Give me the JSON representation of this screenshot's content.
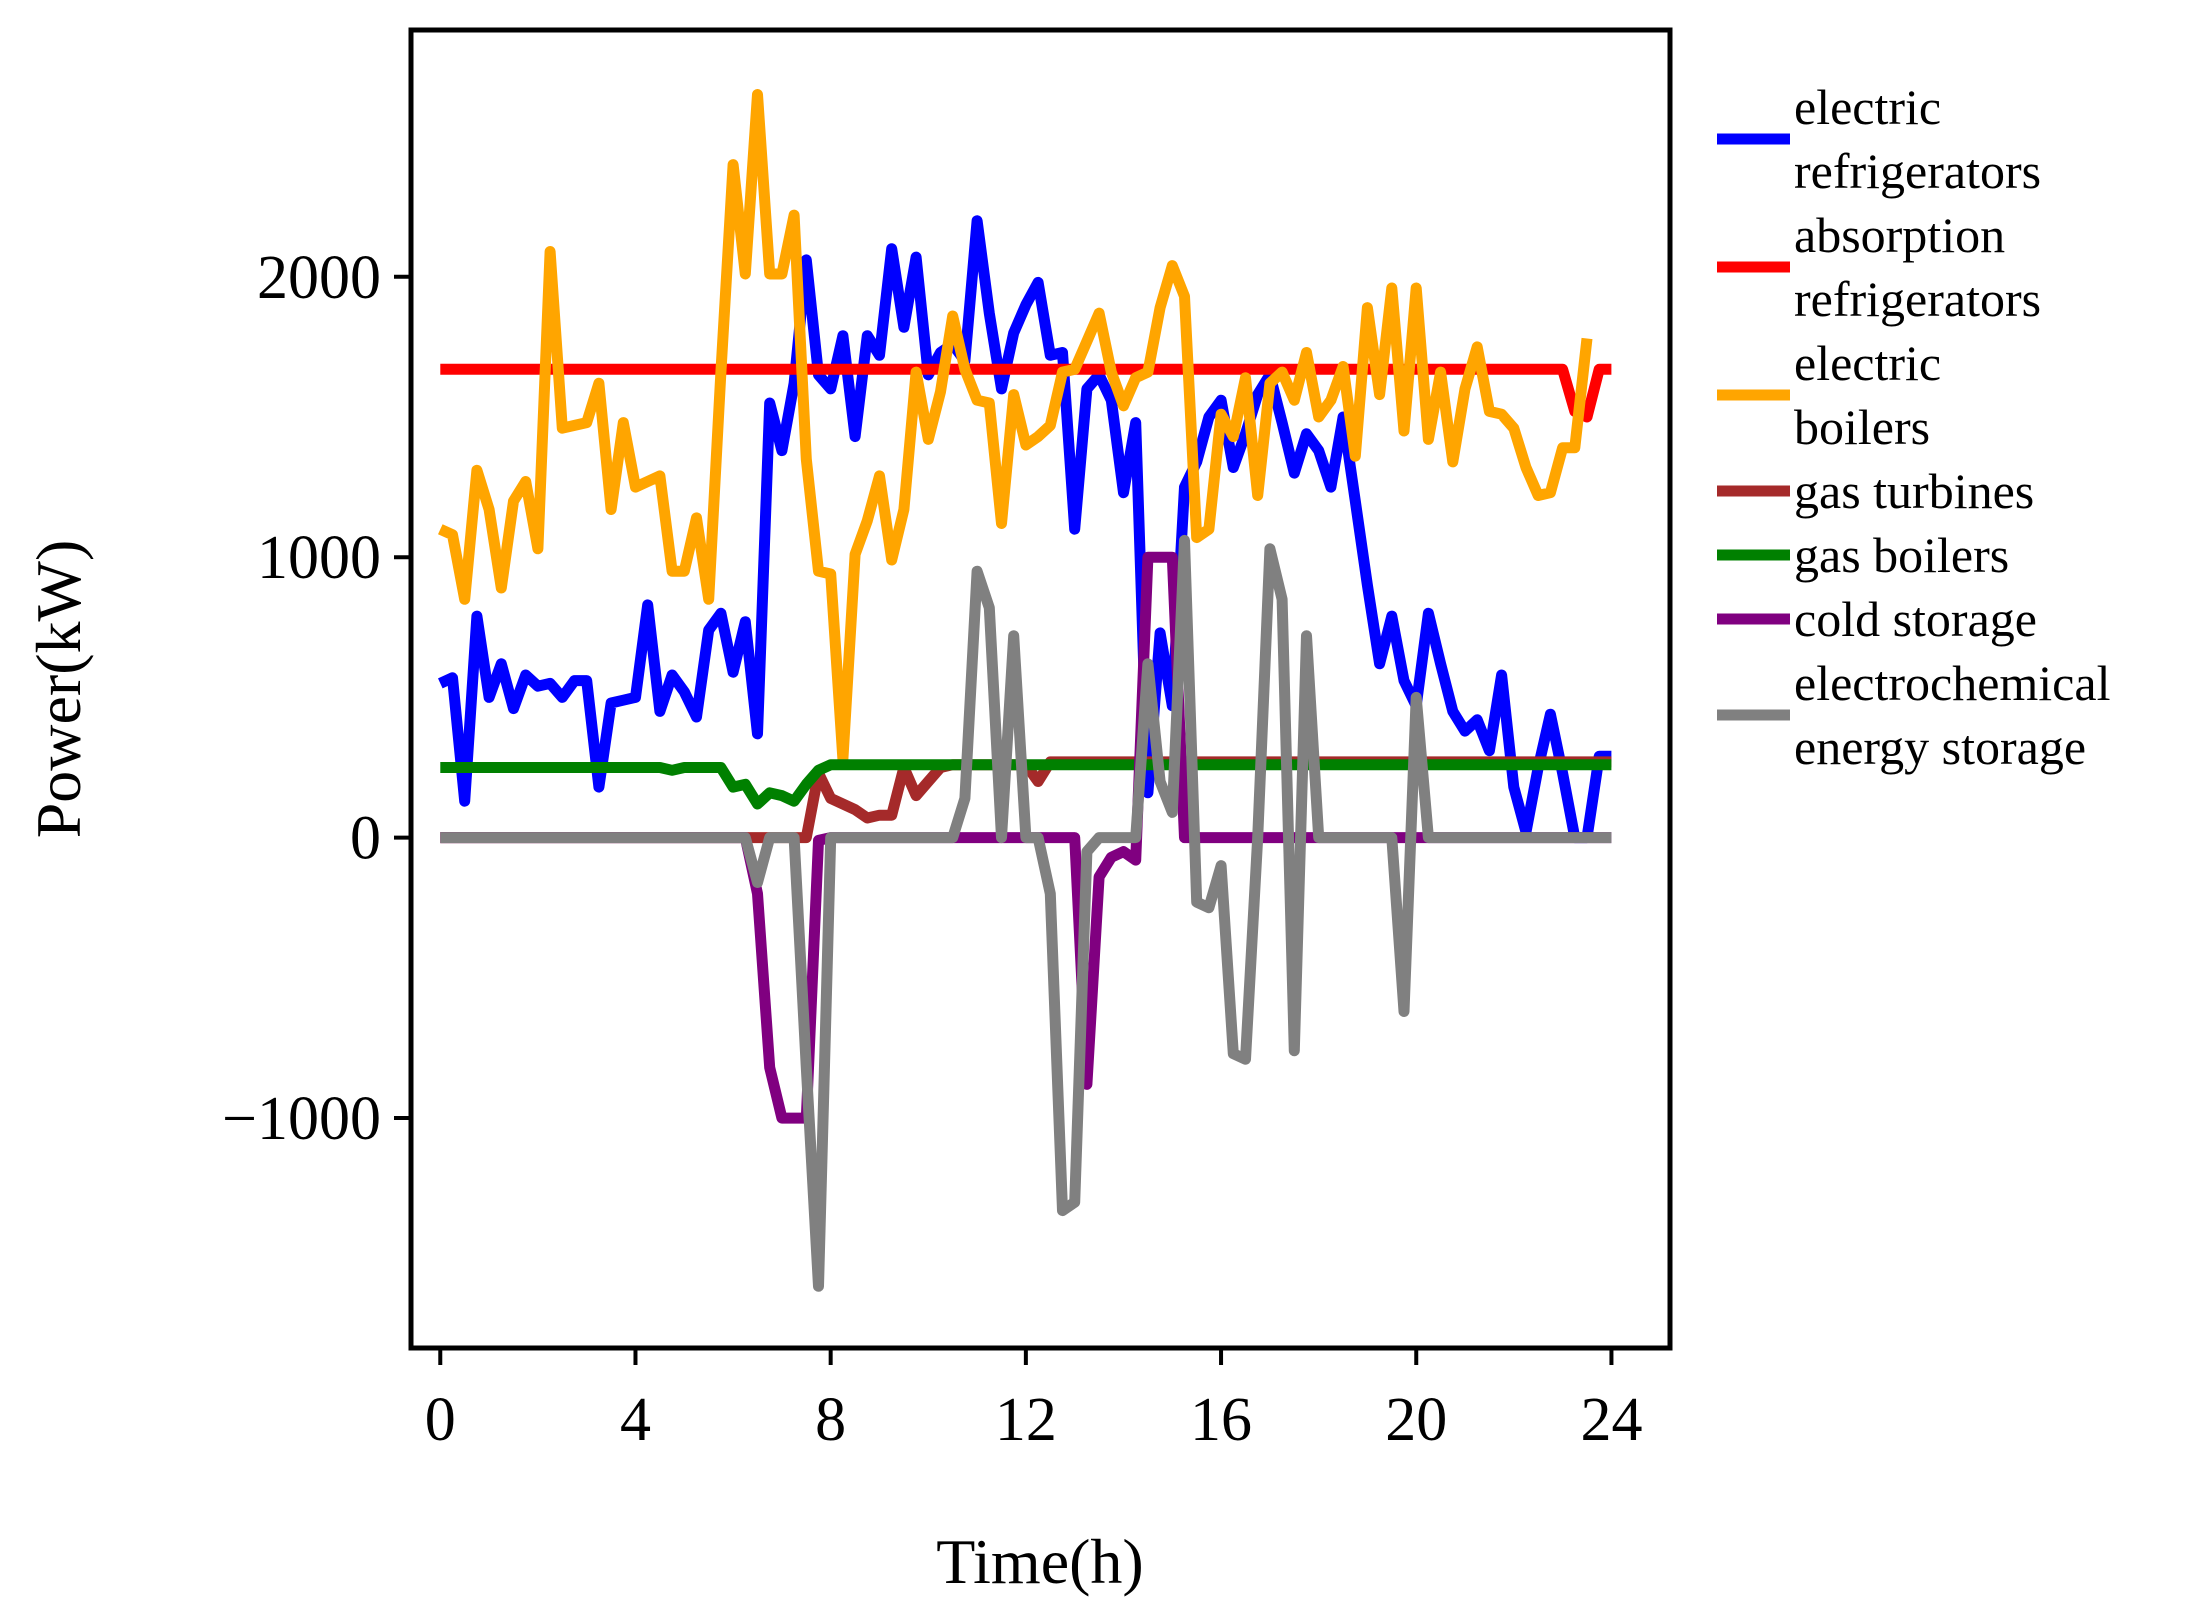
{
  "chart_data": {
    "type": "line",
    "xlabel": "Time(h)",
    "ylabel": "Power(kW)",
    "xlim": [
      -0.6,
      25.2
    ],
    "ylim": [
      -1820,
      2880
    ],
    "xticks": [
      0,
      4,
      8,
      12,
      16,
      20,
      24
    ],
    "xtick_labels": [
      "0",
      "4",
      "8",
      "12",
      "16",
      "20",
      "24"
    ],
    "yticks": [
      -1000,
      0,
      1000,
      2000
    ],
    "ytick_labels": [
      "−1000",
      "0",
      "1000",
      "2000"
    ],
    "grid": false,
    "legend_position": "right-outside-top",
    "series": [
      {
        "name": "electric refrigerators",
        "legend_lines": [
          "electric",
          "refrigerators"
        ],
        "color": "#0000FF",
        "points": [
          [
            0,
            550
          ],
          [
            0.25,
            570
          ],
          [
            0.5,
            130
          ],
          [
            0.75,
            790
          ],
          [
            1,
            500
          ],
          [
            1.25,
            620
          ],
          [
            1.5,
            460
          ],
          [
            1.75,
            580
          ],
          [
            2,
            540
          ],
          [
            2.25,
            550
          ],
          [
            2.5,
            500
          ],
          [
            2.75,
            560
          ],
          [
            3,
            560
          ],
          [
            3.25,
            180
          ],
          [
            3.5,
            480
          ],
          [
            3.75,
            490
          ],
          [
            4,
            500
          ],
          [
            4.25,
            830
          ],
          [
            4.5,
            450
          ],
          [
            4.75,
            580
          ],
          [
            5,
            520
          ],
          [
            5.25,
            430
          ],
          [
            5.5,
            740
          ],
          [
            5.75,
            800
          ],
          [
            6,
            590
          ],
          [
            6.25,
            770
          ],
          [
            6.5,
            370
          ],
          [
            6.75,
            1550
          ],
          [
            7,
            1380
          ],
          [
            7.25,
            1620
          ],
          [
            7.5,
            2060
          ],
          [
            7.75,
            1650
          ],
          [
            8,
            1600
          ],
          [
            8.25,
            1790
          ],
          [
            8.5,
            1430
          ],
          [
            8.75,
            1790
          ],
          [
            9,
            1720
          ],
          [
            9.25,
            2100
          ],
          [
            9.5,
            1820
          ],
          [
            9.75,
            2070
          ],
          [
            10,
            1650
          ],
          [
            10.25,
            1730
          ],
          [
            10.5,
            1760
          ],
          [
            10.75,
            1700
          ],
          [
            11,
            2200
          ],
          [
            11.25,
            1870
          ],
          [
            11.5,
            1600
          ],
          [
            11.75,
            1800
          ],
          [
            12,
            1900
          ],
          [
            12.25,
            1980
          ],
          [
            12.5,
            1720
          ],
          [
            12.75,
            1730
          ],
          [
            13,
            1100
          ],
          [
            13.25,
            1600
          ],
          [
            13.5,
            1650
          ],
          [
            13.75,
            1560
          ],
          [
            14,
            1230
          ],
          [
            14.25,
            1480
          ],
          [
            14.5,
            160
          ],
          [
            14.75,
            730
          ],
          [
            15,
            470
          ],
          [
            15.25,
            1250
          ],
          [
            15.5,
            1340
          ],
          [
            15.75,
            1500
          ],
          [
            16,
            1560
          ],
          [
            16.25,
            1320
          ],
          [
            16.5,
            1440
          ],
          [
            16.75,
            1580
          ],
          [
            17,
            1650
          ],
          [
            17.25,
            1480
          ],
          [
            17.5,
            1300
          ],
          [
            17.75,
            1440
          ],
          [
            18,
            1380
          ],
          [
            18.25,
            1250
          ],
          [
            18.5,
            1500
          ],
          [
            18.75,
            1200
          ],
          [
            19,
            900
          ],
          [
            19.25,
            620
          ],
          [
            19.5,
            790
          ],
          [
            19.75,
            560
          ],
          [
            20,
            470
          ],
          [
            20.25,
            800
          ],
          [
            20.5,
            620
          ],
          [
            20.75,
            450
          ],
          [
            21,
            380
          ],
          [
            21.25,
            420
          ],
          [
            21.5,
            310
          ],
          [
            21.75,
            580
          ],
          [
            22,
            180
          ],
          [
            22.25,
            20
          ],
          [
            22.5,
            250
          ],
          [
            22.75,
            440
          ],
          [
            23,
            230
          ],
          [
            23.25,
            0
          ],
          [
            23.5,
            0
          ],
          [
            23.75,
            290
          ],
          [
            24,
            290
          ]
        ]
      },
      {
        "name": "absorption refrigerators",
        "legend_lines": [
          "absorption",
          "refrigerators"
        ],
        "color": "#FF0000",
        "points": [
          [
            0,
            1670
          ],
          [
            23,
            1670
          ],
          [
            23.25,
            1520
          ],
          [
            23.5,
            1500
          ],
          [
            23.75,
            1670
          ],
          [
            24,
            1670
          ]
        ]
      },
      {
        "name": "electric boilers",
        "legend_lines": [
          "electric",
          "boilers"
        ],
        "color": "#FFA500",
        "points": [
          [
            0,
            1100
          ],
          [
            0.25,
            1080
          ],
          [
            0.5,
            850
          ],
          [
            0.75,
            1310
          ],
          [
            1,
            1170
          ],
          [
            1.25,
            890
          ],
          [
            1.5,
            1200
          ],
          [
            1.75,
            1270
          ],
          [
            2,
            1030
          ],
          [
            2.25,
            2090
          ],
          [
            2.5,
            1460
          ],
          [
            2.75,
            1470
          ],
          [
            3,
            1480
          ],
          [
            3.25,
            1620
          ],
          [
            3.5,
            1170
          ],
          [
            3.75,
            1480
          ],
          [
            4,
            1250
          ],
          [
            4.25,
            1270
          ],
          [
            4.5,
            1290
          ],
          [
            4.75,
            950
          ],
          [
            5,
            950
          ],
          [
            5.25,
            1140
          ],
          [
            5.5,
            850
          ],
          [
            5.75,
            1660
          ],
          [
            6,
            2400
          ],
          [
            6.25,
            2010
          ],
          [
            6.5,
            2650
          ],
          [
            6.75,
            2010
          ],
          [
            7,
            2010
          ],
          [
            7.25,
            2220
          ],
          [
            7.5,
            1350
          ],
          [
            7.75,
            950
          ],
          [
            8,
            940
          ],
          [
            8.25,
            280
          ],
          [
            8.5,
            1010
          ],
          [
            8.75,
            1130
          ],
          [
            9,
            1290
          ],
          [
            9.25,
            990
          ],
          [
            9.5,
            1170
          ],
          [
            9.75,
            1660
          ],
          [
            10,
            1420
          ],
          [
            10.25,
            1590
          ],
          [
            10.5,
            1860
          ],
          [
            10.75,
            1670
          ],
          [
            11,
            1560
          ],
          [
            11.25,
            1550
          ],
          [
            11.5,
            1120
          ],
          [
            11.75,
            1580
          ],
          [
            12,
            1400
          ],
          [
            12.25,
            1430
          ],
          [
            12.5,
            1470
          ],
          [
            12.75,
            1660
          ],
          [
            13,
            1670
          ],
          [
            13.25,
            1770
          ],
          [
            13.5,
            1870
          ],
          [
            13.75,
            1660
          ],
          [
            14,
            1540
          ],
          [
            14.25,
            1640
          ],
          [
            14.5,
            1660
          ],
          [
            14.75,
            1890
          ],
          [
            15,
            2040
          ],
          [
            15.25,
            1930
          ],
          [
            15.5,
            1070
          ],
          [
            15.75,
            1100
          ],
          [
            16,
            1510
          ],
          [
            16.25,
            1430
          ],
          [
            16.5,
            1640
          ],
          [
            16.75,
            1220
          ],
          [
            17,
            1620
          ],
          [
            17.25,
            1660
          ],
          [
            17.5,
            1560
          ],
          [
            17.75,
            1730
          ],
          [
            18,
            1500
          ],
          [
            18.25,
            1560
          ],
          [
            18.5,
            1680
          ],
          [
            18.75,
            1360
          ],
          [
            19,
            1890
          ],
          [
            19.25,
            1580
          ],
          [
            19.5,
            1960
          ],
          [
            19.75,
            1450
          ],
          [
            20,
            1960
          ],
          [
            20.25,
            1420
          ],
          [
            20.5,
            1660
          ],
          [
            20.75,
            1340
          ],
          [
            21,
            1600
          ],
          [
            21.25,
            1750
          ],
          [
            21.5,
            1520
          ],
          [
            21.75,
            1510
          ],
          [
            22,
            1460
          ],
          [
            22.25,
            1320
          ],
          [
            22.5,
            1220
          ],
          [
            22.75,
            1230
          ],
          [
            23,
            1390
          ],
          [
            23.25,
            1390
          ],
          [
            23.5,
            1780
          ]
        ]
      },
      {
        "name": "gas turbines",
        "legend_lines": [
          "gas turbines"
        ],
        "color": "#A52A2A",
        "points": [
          [
            0,
            0
          ],
          [
            7.5,
            0
          ],
          [
            7.75,
            230
          ],
          [
            8,
            140
          ],
          [
            8.25,
            120
          ],
          [
            8.5,
            100
          ],
          [
            8.75,
            70
          ],
          [
            9,
            80
          ],
          [
            9.25,
            80
          ],
          [
            9.5,
            250
          ],
          [
            9.75,
            150
          ],
          [
            10,
            200
          ],
          [
            10.25,
            250
          ],
          [
            10.5,
            260
          ],
          [
            12,
            260
          ],
          [
            12.25,
            200
          ],
          [
            12.5,
            270
          ],
          [
            24,
            270
          ]
        ]
      },
      {
        "name": "gas boilers",
        "legend_lines": [
          "gas boilers"
        ],
        "color": "#008000",
        "points": [
          [
            0,
            250
          ],
          [
            4.5,
            250
          ],
          [
            4.75,
            240
          ],
          [
            5,
            250
          ],
          [
            5.75,
            250
          ],
          [
            6,
            180
          ],
          [
            6.25,
            190
          ],
          [
            6.5,
            120
          ],
          [
            6.75,
            160
          ],
          [
            7,
            150
          ],
          [
            7.25,
            130
          ],
          [
            7.5,
            190
          ],
          [
            7.75,
            240
          ],
          [
            8,
            260
          ],
          [
            24,
            260
          ]
        ]
      },
      {
        "name": "cold storage",
        "legend_lines": [
          "cold storage"
        ],
        "color": "#800080",
        "points": [
          [
            0,
            0
          ],
          [
            6.25,
            0
          ],
          [
            6.5,
            -200
          ],
          [
            6.75,
            -820
          ],
          [
            7,
            -1000
          ],
          [
            7.5,
            -1000
          ],
          [
            7.75,
            -10
          ],
          [
            8,
            0
          ],
          [
            13,
            0
          ],
          [
            13.25,
            -880
          ],
          [
            13.5,
            -140
          ],
          [
            13.75,
            -70
          ],
          [
            14,
            -50
          ],
          [
            14.25,
            -80
          ],
          [
            14.5,
            1000
          ],
          [
            15,
            1000
          ],
          [
            15.25,
            0
          ],
          [
            24,
            0
          ]
        ]
      },
      {
        "name": "electrochemical energy storage",
        "legend_lines": [
          "electrochemical",
          "energy storage"
        ],
        "color": "#808080",
        "points": [
          [
            0,
            0
          ],
          [
            6.25,
            0
          ],
          [
            6.5,
            -160
          ],
          [
            6.75,
            0
          ],
          [
            7,
            0
          ],
          [
            7.25,
            0
          ],
          [
            7.5,
            -820
          ],
          [
            7.75,
            -1600
          ],
          [
            8,
            0
          ],
          [
            10.5,
            0
          ],
          [
            10.75,
            140
          ],
          [
            11,
            950
          ],
          [
            11.25,
            820
          ],
          [
            11.5,
            0
          ],
          [
            11.75,
            720
          ],
          [
            12,
            0
          ],
          [
            12.25,
            0
          ],
          [
            12.5,
            -200
          ],
          [
            12.75,
            -1330
          ],
          [
            13,
            -1300
          ],
          [
            13.25,
            -50
          ],
          [
            13.5,
            0
          ],
          [
            14.25,
            0
          ],
          [
            14.5,
            620
          ],
          [
            14.75,
            200
          ],
          [
            15,
            90
          ],
          [
            15.25,
            1060
          ],
          [
            15.5,
            -230
          ],
          [
            15.75,
            -250
          ],
          [
            16,
            -100
          ],
          [
            16.25,
            -770
          ],
          [
            16.5,
            -790
          ],
          [
            16.75,
            0
          ],
          [
            17,
            1030
          ],
          [
            17.25,
            850
          ],
          [
            17.5,
            -760
          ],
          [
            17.75,
            720
          ],
          [
            18,
            0
          ],
          [
            19.5,
            0
          ],
          [
            19.75,
            -620
          ],
          [
            20,
            500
          ],
          [
            20.25,
            0
          ],
          [
            24,
            0
          ]
        ]
      }
    ]
  }
}
